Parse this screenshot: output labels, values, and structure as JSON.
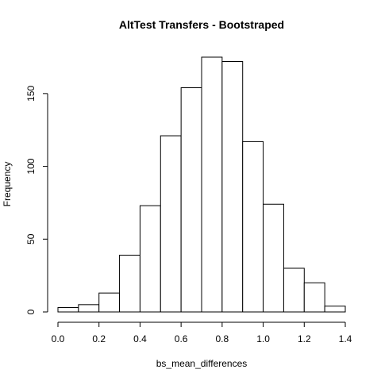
{
  "chart_data": {
    "type": "bar",
    "title": "AltTest Transfers - Bootstraped",
    "xlabel": "bs_mean_differences",
    "ylabel": "Frequency",
    "bin_edges": [
      0.0,
      0.1,
      0.2,
      0.3,
      0.4,
      0.5,
      0.6,
      0.7,
      0.8,
      0.9,
      1.0,
      1.1,
      1.2,
      1.3,
      1.4
    ],
    "values": [
      3,
      5,
      13,
      39,
      73,
      121,
      154,
      175,
      172,
      117,
      74,
      30,
      20,
      4
    ],
    "xlim": [
      0.0,
      1.4
    ],
    "ylim": [
      0,
      175
    ],
    "x_ticks": [
      "0.0",
      "0.2",
      "0.4",
      "0.6",
      "0.8",
      "1.0",
      "1.2",
      "1.4"
    ],
    "y_ticks": [
      "0",
      "50",
      "100",
      "150"
    ],
    "grid": false,
    "legend": "none"
  }
}
